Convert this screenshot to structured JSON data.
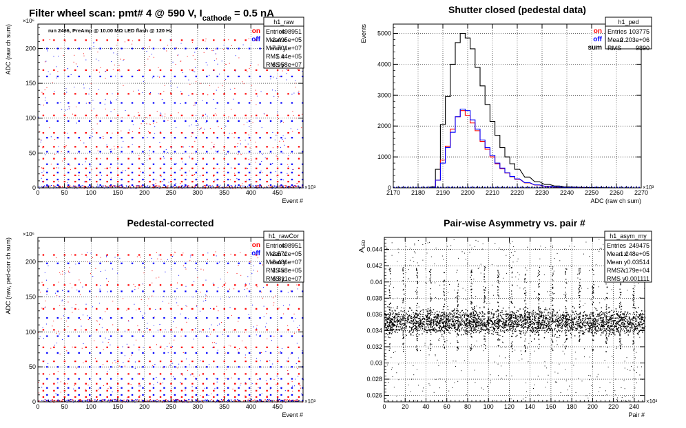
{
  "page_title": {
    "pre": "Filter wheel scan: pmt#   4 @   590 V, I",
    "sub": "cathode",
    "post": "   = 0.5 nA"
  },
  "colors": {
    "on": "#ff0000",
    "off": "#0000ff",
    "sum": "#000000",
    "axis": "#000000",
    "grid": "#000000"
  },
  "chart_data": [
    {
      "id": "raw",
      "type": "scatter",
      "title": "",
      "note": "run 2466, PreAmp @ 10.00 MΩ LED flash @  120 Hz",
      "xlabel": "Event #",
      "ylabel": "ADC (raw ch sum)",
      "x_exponent": "×10³",
      "y_exponent": "×10⁶",
      "xlim": [
        0,
        498
      ],
      "ylim": [
        0,
        235
      ],
      "xticks": [
        0,
        50,
        100,
        150,
        200,
        250,
        300,
        350,
        400,
        450
      ],
      "yticks": [
        0,
        50,
        100,
        150,
        200
      ],
      "grid": true,
      "legend": {
        "position": "top-right",
        "entries": [
          {
            "label": "on",
            "color": "on"
          },
          {
            "label": "off",
            "color": "off"
          }
        ]
      },
      "series": [
        {
          "name": "on",
          "levels": [
            212,
            169,
            135,
            104,
            79,
            59,
            42,
            28,
            18,
            9
          ],
          "cluster_step": 20,
          "cluster_start": 10
        },
        {
          "name": "off",
          "levels": [
            200,
            160,
            122,
            96,
            72,
            52,
            34,
            22,
            12,
            4
          ],
          "cluster_step": 20,
          "cluster_start": 17
        }
      ],
      "stats": {
        "name": "h1_raw",
        "rows": [
          {
            "k": "Entries",
            "v": "498951"
          },
          {
            "k": "Mean x",
            "v": "2.495e+05"
          },
          {
            "k": "Mean y",
            "v": "7.701e+07"
          },
          {
            "k": "RMS x",
            "v": "1.44e+05"
          },
          {
            "k": "RMS y",
            "v": "6.958e+07"
          }
        ]
      }
    },
    {
      "id": "ped",
      "type": "line",
      "title": "Shutter closed (pedestal data)",
      "xlabel": "ADC (raw ch sum)",
      "ylabel": "Events",
      "x_exponent": "×10³",
      "xlim": [
        2170,
        2270
      ],
      "ylim": [
        0,
        5300
      ],
      "xticks": [
        2170,
        2180,
        2190,
        2200,
        2210,
        2220,
        2230,
        2240,
        2250,
        2260,
        2270
      ],
      "yticks": [
        0,
        1000,
        2000,
        3000,
        4000,
        5000
      ],
      "grid": true,
      "legend": {
        "position": "top-right",
        "entries": [
          {
            "label": "on",
            "color": "on"
          },
          {
            "label": "off",
            "color": "off"
          },
          {
            "label": "sum",
            "color": "sum"
          }
        ]
      },
      "x": [
        2186,
        2188,
        2190,
        2192,
        2194,
        2196,
        2198,
        2200,
        2202,
        2204,
        2206,
        2208,
        2210,
        2212,
        2214,
        2216,
        2218,
        2220,
        2224,
        2228,
        2232,
        2236,
        2240,
        2250,
        2260
      ],
      "series": [
        {
          "name": "sum",
          "values": [
            30,
            600,
            2050,
            2950,
            4000,
            4700,
            5000,
            4850,
            4500,
            3900,
            3300,
            2700,
            2150,
            1700,
            1300,
            1000,
            780,
            600,
            350,
            200,
            110,
            60,
            30,
            10,
            0
          ]
        },
        {
          "name": "on",
          "values": [
            10,
            250,
            900,
            1350,
            1900,
            2300,
            2500,
            2350,
            2100,
            1850,
            1500,
            1250,
            1000,
            780,
            620,
            480,
            360,
            280,
            160,
            90,
            50,
            25,
            10,
            0,
            0
          ]
        },
        {
          "name": "off",
          "values": [
            10,
            250,
            800,
            1300,
            1800,
            2300,
            2550,
            2500,
            2200,
            1900,
            1550,
            1300,
            1050,
            800,
            640,
            490,
            370,
            290,
            170,
            95,
            55,
            28,
            12,
            0,
            0
          ]
        }
      ],
      "stats": {
        "name": "h1_ped",
        "rows": [
          {
            "k": "Entries",
            "v": "103775"
          },
          {
            "k": "Mean",
            "v": "2.203e+06"
          },
          {
            "k": "RMS",
            "v": "9890"
          }
        ]
      }
    },
    {
      "id": "rawcor",
      "type": "scatter",
      "title": "Pedestal-corrected",
      "xlabel": "Event #",
      "ylabel": "ADC (raw, ped-corr ch sum)",
      "x_exponent": "×10³",
      "y_exponent": "×10⁶",
      "xlim": [
        0,
        498
      ],
      "ylim": [
        0,
        235
      ],
      "xticks": [
        0,
        50,
        100,
        150,
        200,
        250,
        300,
        350,
        400,
        450
      ],
      "yticks": [
        0,
        50,
        100,
        150,
        200
      ],
      "grid": true,
      "legend": {
        "position": "top-right",
        "entries": [
          {
            "label": "on",
            "color": "on"
          },
          {
            "label": "off",
            "color": "off"
          }
        ]
      },
      "series": [
        {
          "name": "on",
          "levels": [
            210,
            167,
            133,
            103,
            78,
            58,
            40,
            26,
            16,
            7
          ],
          "cluster_step": 20,
          "cluster_start": 10
        },
        {
          "name": "off",
          "levels": [
            198,
            158,
            120,
            94,
            70,
            50,
            33,
            20,
            10,
            2
          ],
          "cluster_step": 20,
          "cluster_start": 17
        }
      ],
      "stats": {
        "name": "h1_rawCor",
        "rows": [
          {
            "k": "Entries",
            "v": "498951"
          },
          {
            "k": "Mean x",
            "v": "2.572e+05"
          },
          {
            "k": "Mean y",
            "v": "8.486e+07"
          },
          {
            "k": "RMS x",
            "v": "1.458e+05"
          },
          {
            "k": "RMS y",
            "v": "6.811e+07"
          }
        ]
      }
    },
    {
      "id": "asym",
      "type": "scatter",
      "title": "Pair-wise Asymmetry vs. pair #",
      "xlabel": "Pair #",
      "ylabel": "A_LED",
      "x_exponent": "×10³",
      "xlim": [
        0,
        250
      ],
      "ylim": [
        0.0252,
        0.0455
      ],
      "xticks": [
        0,
        20,
        40,
        60,
        80,
        100,
        120,
        140,
        160,
        180,
        200,
        220,
        240
      ],
      "yticks": [
        0.026,
        0.028,
        0.03,
        0.032,
        0.034,
        0.036,
        0.038,
        0.04,
        0.042,
        0.044
      ],
      "grid": true,
      "band": {
        "center": 0.0351,
        "half_width": 0.0011
      },
      "spike_x": [
        5,
        18,
        31,
        44,
        57,
        70,
        83,
        96,
        109,
        122,
        135,
        148,
        161,
        174,
        187,
        200,
        213,
        226,
        239
      ],
      "stats": {
        "name": "h1_asym_my",
        "rows": [
          {
            "k": "Entries",
            "v": "249475"
          },
          {
            "k": "Mean x",
            "v": "1.248e+05"
          },
          {
            "k": "Mean y",
            "v": "0.03514"
          },
          {
            "k": "RMS x",
            "v": "7.179e+04"
          },
          {
            "k": "RMS y",
            "v": "0.001111"
          }
        ]
      }
    }
  ]
}
